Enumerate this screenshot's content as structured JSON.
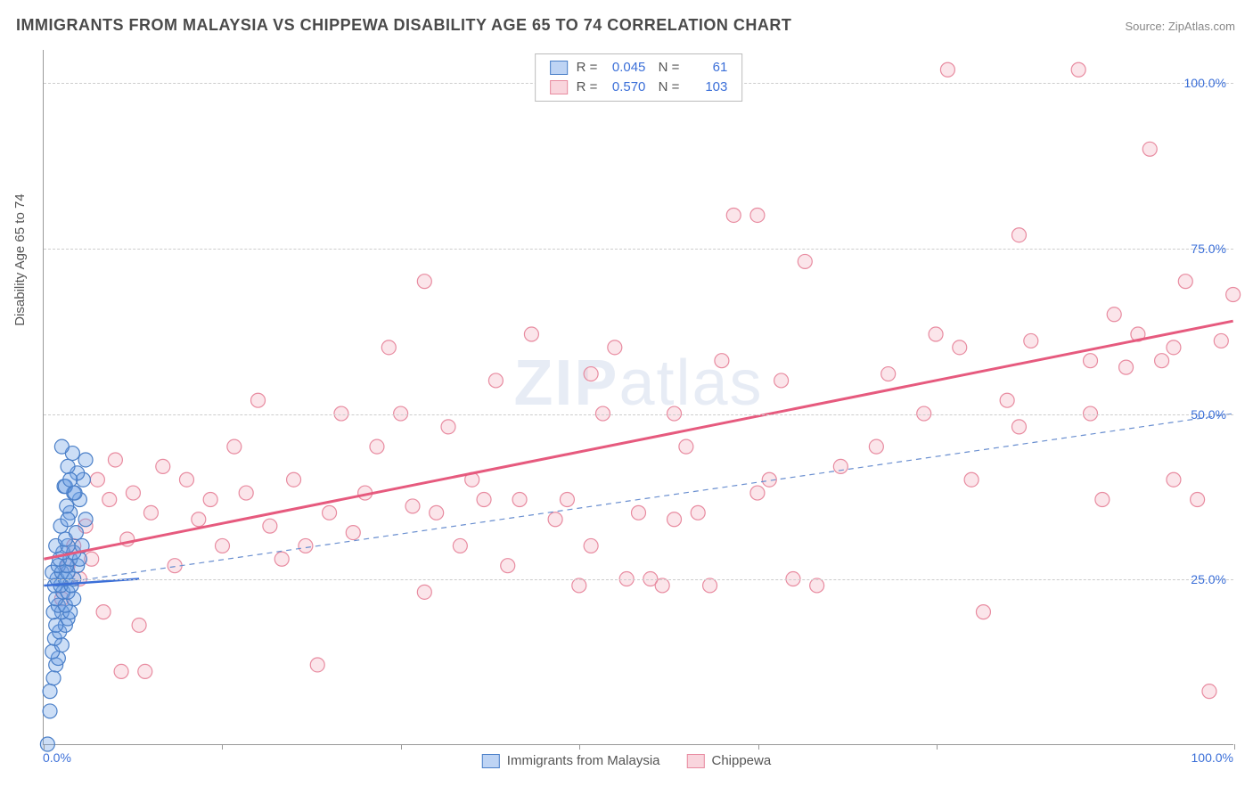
{
  "title": "IMMIGRANTS FROM MALAYSIA VS CHIPPEWA DISABILITY AGE 65 TO 74 CORRELATION CHART",
  "source": "Source: ZipAtlas.com",
  "y_axis_title": "Disability Age 65 to 74",
  "watermark": "ZIPatlas",
  "chart": {
    "type": "scatter",
    "xlim": [
      0,
      100
    ],
    "ylim": [
      0,
      105
    ],
    "x_ticks": [
      0,
      15,
      30,
      45,
      60,
      75,
      100
    ],
    "x_label_min": "0.0%",
    "x_label_max": "100.0%",
    "y_gridlines": [
      25,
      50,
      75,
      100
    ],
    "y_tick_labels": [
      "25.0%",
      "50.0%",
      "75.0%",
      "100.0%"
    ],
    "background_color": "#ffffff",
    "grid_color": "#cccccc",
    "marker_radius": 8,
    "series": [
      {
        "name": "Immigrants from Malaysia",
        "color_fill": "rgba(110,160,230,0.35)",
        "color_stroke": "#4a7fc8",
        "R": "0.045",
        "N": "61",
        "trend_solid": {
          "x1": 0,
          "y1": 24,
          "x2": 8,
          "y2": 25
        },
        "trend_dash": {
          "x1": 0,
          "y1": 24,
          "x2": 100,
          "y2": 50
        },
        "points": [
          [
            0.3,
            0.0
          ],
          [
            0.5,
            5
          ],
          [
            0.5,
            8
          ],
          [
            0.8,
            10
          ],
          [
            1.0,
            12
          ],
          [
            1.2,
            13
          ],
          [
            0.7,
            14
          ],
          [
            1.5,
            15
          ],
          [
            0.9,
            16
          ],
          [
            1.3,
            17
          ],
          [
            1.8,
            18
          ],
          [
            1.0,
            18
          ],
          [
            2.0,
            19
          ],
          [
            1.5,
            20
          ],
          [
            0.8,
            20
          ],
          [
            2.2,
            20
          ],
          [
            1.2,
            21
          ],
          [
            1.8,
            21
          ],
          [
            2.5,
            22
          ],
          [
            1.0,
            22
          ],
          [
            1.6,
            23
          ],
          [
            2.0,
            23
          ],
          [
            0.9,
            24
          ],
          [
            1.4,
            24
          ],
          [
            2.3,
            24
          ],
          [
            1.1,
            25
          ],
          [
            1.8,
            25
          ],
          [
            2.5,
            25
          ],
          [
            0.7,
            26
          ],
          [
            1.5,
            26
          ],
          [
            2.0,
            26
          ],
          [
            1.2,
            27
          ],
          [
            2.8,
            27
          ],
          [
            1.9,
            27
          ],
          [
            1.3,
            28
          ],
          [
            2.2,
            28
          ],
          [
            3.0,
            28
          ],
          [
            1.6,
            29
          ],
          [
            2.5,
            29
          ],
          [
            1.0,
            30
          ],
          [
            2.0,
            30
          ],
          [
            3.2,
            30
          ],
          [
            1.8,
            31
          ],
          [
            2.7,
            32
          ],
          [
            1.4,
            33
          ],
          [
            3.5,
            34
          ],
          [
            2.2,
            35
          ],
          [
            1.9,
            36
          ],
          [
            3.0,
            37
          ],
          [
            2.5,
            38
          ],
          [
            1.7,
            39
          ],
          [
            3.3,
            40
          ],
          [
            2.8,
            41
          ],
          [
            2.0,
            42
          ],
          [
            3.5,
            43
          ],
          [
            2.4,
            44
          ],
          [
            1.5,
            45
          ],
          [
            1.8,
            39
          ],
          [
            2.2,
            40
          ],
          [
            2.6,
            38
          ],
          [
            2.0,
            34
          ]
        ]
      },
      {
        "name": "Chippewa",
        "color_fill": "rgba(240,150,170,0.25)",
        "color_stroke": "#e88ba0",
        "R": "0.570",
        "N": "103",
        "trend_solid": {
          "x1": 0,
          "y1": 28,
          "x2": 100,
          "y2": 64
        },
        "points": [
          [
            1.5,
            22
          ],
          [
            2.0,
            27
          ],
          [
            2.5,
            30
          ],
          [
            3.0,
            25
          ],
          [
            3.5,
            33
          ],
          [
            4.0,
            28
          ],
          [
            4.5,
            40
          ],
          [
            5.0,
            20
          ],
          [
            5.5,
            37
          ],
          [
            6.0,
            43
          ],
          [
            7.0,
            31
          ],
          [
            7.5,
            38
          ],
          [
            8.0,
            18
          ],
          [
            9.0,
            35
          ],
          [
            10.0,
            42
          ],
          [
            11.0,
            27
          ],
          [
            12.0,
            40
          ],
          [
            13.0,
            34
          ],
          [
            14.0,
            37
          ],
          [
            15.0,
            30
          ],
          [
            6.5,
            11
          ],
          [
            8.5,
            11
          ],
          [
            16.0,
            45
          ],
          [
            17.0,
            38
          ],
          [
            18.0,
            52
          ],
          [
            19.0,
            33
          ],
          [
            20.0,
            28
          ],
          [
            21.0,
            40
          ],
          [
            22.0,
            30
          ],
          [
            23.0,
            12
          ],
          [
            24.0,
            35
          ],
          [
            25.0,
            50
          ],
          [
            26.0,
            32
          ],
          [
            27.0,
            38
          ],
          [
            28.0,
            45
          ],
          [
            29.0,
            60
          ],
          [
            30.0,
            50
          ],
          [
            31.0,
            36
          ],
          [
            32.0,
            70
          ],
          [
            33.0,
            35
          ],
          [
            34.0,
            48
          ],
          [
            35.0,
            30
          ],
          [
            36.0,
            40
          ],
          [
            37.0,
            37
          ],
          [
            38.0,
            55
          ],
          [
            39.0,
            27
          ],
          [
            40.0,
            37
          ],
          [
            41.0,
            62
          ],
          [
            32.0,
            23
          ],
          [
            43.0,
            34
          ],
          [
            44.0,
            37
          ],
          [
            45.0,
            24
          ],
          [
            46.0,
            56
          ],
          [
            47.0,
            50
          ],
          [
            48.0,
            60
          ],
          [
            49.0,
            25
          ],
          [
            50.0,
            35
          ],
          [
            51.0,
            25
          ],
          [
            52.0,
            24
          ],
          [
            53.0,
            50
          ],
          [
            54.0,
            45
          ],
          [
            55.0,
            35
          ],
          [
            56.0,
            24
          ],
          [
            57.0,
            58
          ],
          [
            58.0,
            80
          ],
          [
            60.0,
            80
          ],
          [
            61.0,
            40
          ],
          [
            62.0,
            55
          ],
          [
            63.0,
            25
          ],
          [
            64.0,
            73
          ],
          [
            65.0,
            24
          ],
          [
            71.0,
            56
          ],
          [
            74.0,
            50
          ],
          [
            75.0,
            62
          ],
          [
            76.0,
            102
          ],
          [
            77.0,
            60
          ],
          [
            78.0,
            40
          ],
          [
            79.0,
            20
          ],
          [
            81.0,
            52
          ],
          [
            82.0,
            77
          ],
          [
            83.0,
            61
          ],
          [
            87.0,
            102
          ],
          [
            88.0,
            50
          ],
          [
            89.0,
            37
          ],
          [
            90.0,
            65
          ],
          [
            91.0,
            57
          ],
          [
            92.0,
            62
          ],
          [
            93.0,
            90
          ],
          [
            94.0,
            58
          ],
          [
            95.0,
            40
          ],
          [
            96.0,
            70
          ],
          [
            97.0,
            37
          ],
          [
            98.0,
            8
          ],
          [
            99.0,
            61
          ],
          [
            100.0,
            68
          ],
          [
            95.0,
            60
          ],
          [
            88.0,
            58
          ],
          [
            82.0,
            48
          ],
          [
            70.0,
            45
          ],
          [
            67.0,
            42
          ],
          [
            60.0,
            38
          ],
          [
            53.0,
            34
          ],
          [
            46.0,
            30
          ]
        ]
      }
    ]
  },
  "legend_bottom": [
    {
      "label": "Immigrants from Malaysia",
      "fill": "rgba(110,160,230,0.45)",
      "stroke": "#4a7fc8"
    },
    {
      "label": "Chippewa",
      "fill": "rgba(240,150,170,0.4)",
      "stroke": "#e88ba0"
    }
  ]
}
